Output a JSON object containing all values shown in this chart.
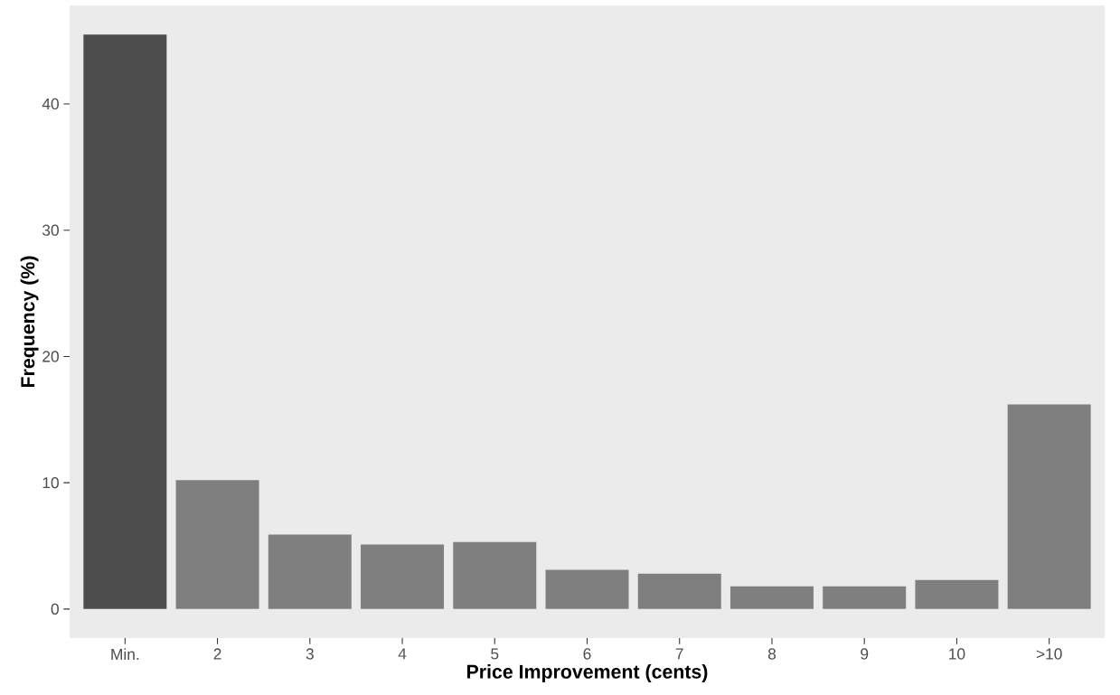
{
  "chart_data": {
    "type": "bar",
    "xlabel": "Price Improvement (cents)",
    "ylabel": "Frequency (%)",
    "categories": [
      "Min.",
      "2",
      "3",
      "4",
      "5",
      "6",
      "7",
      "8",
      "9",
      "10",
      ">10"
    ],
    "values": [
      45.5,
      10.2,
      5.9,
      5.1,
      5.3,
      3.1,
      2.8,
      1.8,
      1.8,
      2.3,
      16.2
    ],
    "colors": [
      "#4d4d4d",
      "#7f7f7f",
      "#7f7f7f",
      "#7f7f7f",
      "#7f7f7f",
      "#7f7f7f",
      "#7f7f7f",
      "#7f7f7f",
      "#7f7f7f",
      "#7f7f7f",
      "#7f7f7f"
    ],
    "ylim": [
      -2.3,
      47.8
    ],
    "yticks": [
      0,
      10,
      20,
      30,
      40
    ],
    "grid": false
  }
}
